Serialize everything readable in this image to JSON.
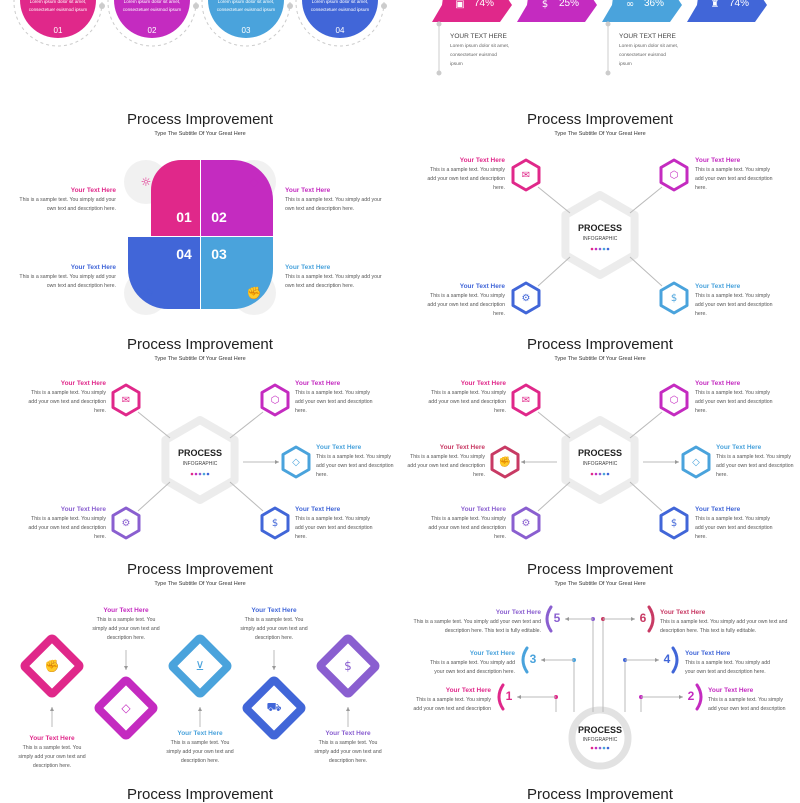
{
  "colors": {
    "pink": "#e0288a",
    "magenta": "#c42bc0",
    "lightblue": "#4aa3dc",
    "blue": "#4166d8",
    "purple": "#8a5fd0",
    "red": "#c83a64",
    "gray": "#e9e9e9"
  },
  "top_left": {
    "items": [
      {
        "text": "Lorem ipsum dolor sit amet, consectetuer euismod ipsum",
        "number": "01"
      },
      {
        "text": "Lorem ipsum dolor sit amet, consectetuer euismod ipsum",
        "number": "02"
      },
      {
        "text": "Lorem ipsum dolor sit amet, consectetuer euismod ipsum",
        "number": "03"
      },
      {
        "text": "Lorem ipsum dolor sit amet, consectetuer euismod ipsum",
        "number": "04"
      }
    ]
  },
  "top_right": {
    "chevrons": [
      {
        "value": "74%",
        "icon": "briefcase-icon"
      },
      {
        "value": "25%",
        "icon": "money-bag-icon"
      },
      {
        "value": "36%",
        "icon": "handshake-icon"
      },
      {
        "value": "74%",
        "icon": "chess-icon"
      }
    ],
    "notes": [
      {
        "heading": "YOUR TEXT HERE",
        "text": "Lorem ipsum dolor sit amet, consectetuer euismod ipsum"
      },
      {
        "heading": "YOUR TEXT HERE",
        "text": "Lorem ipsum dolor sit amet, consectetuer euismod ipsum"
      }
    ]
  },
  "panels": [
    {
      "title": "Process Improvement",
      "subtitle": "Type The Subtitle Of Your Great Here",
      "items": [
        {
          "heading": "Your Text Here",
          "text": "This is a sample text. You simply add your own text and description here.",
          "number": "01",
          "icon": "lightbulb-icon"
        },
        {
          "heading": "Your Text Here",
          "text": "This is a sample text. You simply add your own text and description here.",
          "number": "02",
          "icon": "diamond-icon"
        },
        {
          "heading": "Your Text Here",
          "text": "This is a sample text. You simply add your own text and description here.",
          "number": "04",
          "icon": "delivery-icon"
        },
        {
          "heading": "Your Text Here",
          "text": "This is a sample text. You simply add your own text and description here.",
          "number": "03",
          "icon": "strength-icon"
        }
      ]
    },
    {
      "title": "Process Improvement",
      "subtitle": "Type The Subtitle Of Your Great Here",
      "center": {
        "title": "PROCESS",
        "subtitle": "INFOGRAPHIC"
      },
      "items": [
        {
          "heading": "Your Text Here",
          "text": "This is a sample text. You simply add your own text and description here.",
          "icon": "envelope-icon"
        },
        {
          "heading": "Your Text Here",
          "text": "This is a sample text. You simply add your own text and description here.",
          "icon": "hexagon-icon"
        },
        {
          "heading": "Your Text Here",
          "text": "This is a sample text. You simply add your own text and description here.",
          "icon": "gear-icon"
        },
        {
          "heading": "Your Text Here",
          "text": "This is a sample text. You simply add your own text and description here.",
          "icon": "money-hand-icon"
        }
      ]
    },
    {
      "title": "Process Improvement",
      "subtitle": "Type The Subtitle Of Your Great Here",
      "center": {
        "title": "PROCESS",
        "subtitle": "INFOGRAPHIC"
      },
      "items": [
        {
          "heading": "Your Text Here",
          "text": "This is a sample text. You simply add your own text and description here.",
          "icon": "envelope-icon"
        },
        {
          "heading": "Your Text Here",
          "text": "This is a sample text. You simply add your own text and description here.",
          "icon": "hexagon-icon"
        },
        {
          "heading": "Your Text Here",
          "text": "This is a sample text. You simply add your own text and description here.",
          "icon": "diamond-icon"
        },
        {
          "heading": "Your Text Here",
          "text": "This is a sample text. You simply add your own text and description here.",
          "icon": "gear-icon"
        },
        {
          "heading": "Your Text Here",
          "text": "This is a sample text. You simply add your own text and description here.",
          "icon": "money-hand-icon"
        }
      ]
    },
    {
      "title": "Process Improvement",
      "subtitle": "Type The Subtitle Of Your Great Here",
      "center": {
        "title": "PROCESS",
        "subtitle": "INFOGRAPHIC"
      },
      "items": [
        {
          "heading": "Your Text Here",
          "text": "This is a sample text. You simply add your own text and description here.",
          "icon": "envelope-icon"
        },
        {
          "heading": "Your Text Here",
          "text": "This is a sample text. You simply add your own text and description here.",
          "icon": "hexagon-icon"
        },
        {
          "heading": "Your Text Here",
          "text": "This is a sample text. You simply add your own text and description here.",
          "icon": "strength-icon"
        },
        {
          "heading": "Your Text Here",
          "text": "This is a sample text. You simply add your own text and description here.",
          "icon": "diamond-icon"
        },
        {
          "heading": "Your Text Here",
          "text": "This is a sample text. You simply add your own text and description here.",
          "icon": "gear-icon"
        },
        {
          "heading": "Your Text Here",
          "text": "This is a sample text. You simply add your own text and description here.",
          "icon": "money-hand-icon"
        }
      ]
    },
    {
      "title": "Process Improvement",
      "subtitle": "Type The Subtitle Of Your Great Here",
      "items": [
        {
          "heading": "Your Text Here",
          "text": "This is a sample text. You simply add your own text and description here.",
          "icon": "strength-icon"
        },
        {
          "heading": "Your Text Here",
          "text": "This is a sample text. You simply add your own text and description here.",
          "icon": "diamond-icon"
        },
        {
          "heading": "Your Text Here",
          "text": "This is a sample text. You simply add your own text and description here.",
          "icon": "cart-icon"
        },
        {
          "heading": "Your Text Here",
          "text": "This is a sample text. You simply add your own text and description here.",
          "icon": "delivery-icon"
        },
        {
          "heading": "Your Text Here",
          "text": "This is a sample text. You simply add your own text and description here.",
          "icon": "money-hand-icon"
        }
      ]
    },
    {
      "title": "Process Improvement",
      "subtitle": "Type The Subtitle Of Your Great Here",
      "center": {
        "title": "PROCESS",
        "subtitle": "INFOGRAPHIC"
      },
      "items": [
        {
          "number": "1",
          "heading": "Your Text Here",
          "text": "This is a sample text. You simply add your own text and description"
        },
        {
          "number": "2",
          "heading": "Your Text Here",
          "text": "This is a sample text. You simply add your own text and description"
        },
        {
          "number": "3",
          "heading": "Your Text Here",
          "text": "This is a sample text. You simply add your own text and description here."
        },
        {
          "number": "4",
          "heading": "Your Text Here",
          "text": "This is a sample text. You simply add your own text and description here."
        },
        {
          "number": "5",
          "heading": "Your Text Here",
          "text": "This is a sample text. You simply add your own text and description here. This text is fully editable."
        },
        {
          "number": "6",
          "heading": "Your Text Here",
          "text": "This is a sample text. You simply add your own text and description here. This text is fully editable."
        }
      ]
    },
    {
      "title": "Process Improvement"
    },
    {
      "title": "Process Improvement"
    }
  ]
}
